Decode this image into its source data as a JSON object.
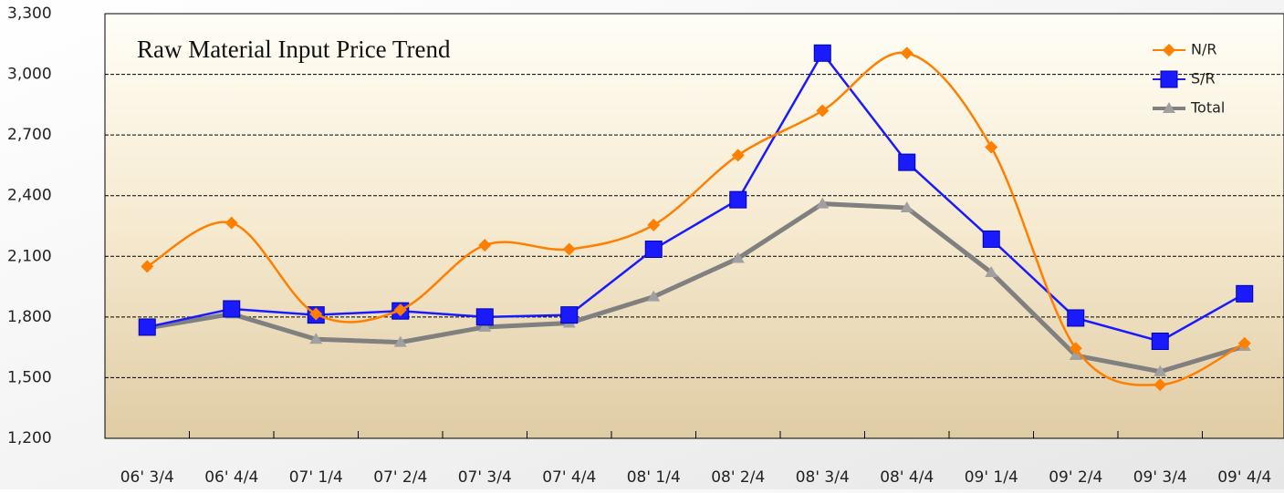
{
  "chart_data": {
    "type": "line",
    "title": "Raw Material Input Price Trend",
    "categories": [
      "06' 3/4",
      "06' 4/4",
      "07' 1/4",
      "07' 2/4",
      "07' 3/4",
      "07' 4/4",
      "08' 1/4",
      "08' 2/4",
      "08' 3/4",
      "08' 4/4",
      "09' 1/4",
      "09' 2/4",
      "09' 3/4",
      "09' 4/4"
    ],
    "series": [
      {
        "name": "N/R",
        "color": "#ff7f00",
        "smooth": true,
        "marker": "diamond",
        "values": [
          2050,
          2265,
          1815,
          1835,
          2155,
          2135,
          2255,
          2600,
          2820,
          3105,
          2640,
          1645,
          1465,
          1670
        ]
      },
      {
        "name": "S/R",
        "color": "#1a1aff",
        "smooth": false,
        "marker": "square",
        "values": [
          1750,
          1840,
          1810,
          1830,
          1800,
          1810,
          2135,
          2380,
          3105,
          2565,
          2185,
          1795,
          1680,
          1915
        ]
      },
      {
        "name": "Total",
        "color": "#808080",
        "smooth": false,
        "marker": "triangle",
        "values": [
          1745,
          1815,
          1690,
          1675,
          1750,
          1770,
          1900,
          2090,
          2360,
          2340,
          2020,
          1610,
          1530,
          1655
        ]
      }
    ],
    "ylim": [
      1200,
      3300
    ],
    "yticks": [
      {
        "value": 1200,
        "label": "1,200"
      },
      {
        "value": 1500,
        "label": "1,500"
      },
      {
        "value": 1800,
        "label": "1,800"
      },
      {
        "value": 2100,
        "label": "2,100"
      },
      {
        "value": 2400,
        "label": "2,400"
      },
      {
        "value": 2700,
        "label": "2,700"
      },
      {
        "value": 3000,
        "label": "3,000"
      },
      {
        "value": 3300,
        "label": "3,300"
      }
    ],
    "grid": true,
    "legend": "top-right"
  }
}
